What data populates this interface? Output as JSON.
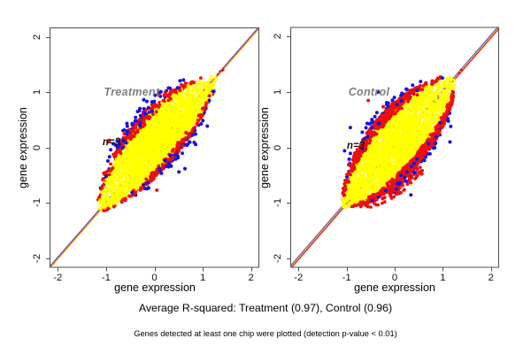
{
  "chart_data": [
    {
      "type": "scatter",
      "panel_label": "Treatment",
      "annotation": "n=3",
      "xlabel": "gene expression",
      "ylabel": "gene expression",
      "xlim": [
        -2.17,
        2.17
      ],
      "ylim": [
        -2.17,
        2.17
      ],
      "x_ticks": [
        -2,
        -1,
        0,
        1,
        2
      ],
      "y_ticks": [
        2,
        1,
        0,
        -1,
        -2
      ],
      "grid": false,
      "r_squared": 0.97,
      "identity_line_colors": [
        "#4444cc",
        "#ff9900"
      ],
      "point_colors": {
        "core": "#ffff00",
        "fringe_red": "#ee0f0f",
        "fringe_blue": "#1414dd"
      },
      "cloud": {
        "t_min": -1.15,
        "t_max": 1.28,
        "u_max": 0.29,
        "neg_scale": 1.22,
        "pos_scale": 0.82,
        "n_core": 3600,
        "n_red": 430,
        "n_blue": 135,
        "n_outliers": 14,
        "red_below_frac": 0.5,
        "red_on_top_frac": 0.35,
        "extra_low_red": 0,
        "tip_dashes": 6,
        "seed": 42
      }
    },
    {
      "type": "scatter",
      "panel_label": "Control",
      "annotation": "n=3",
      "xlabel": "gene expression",
      "ylabel": "gene expression",
      "xlim": [
        -2.17,
        2.17
      ],
      "ylim": [
        -2.17,
        2.17
      ],
      "x_ticks": [
        -2,
        -1,
        0,
        1,
        2
      ],
      "y_ticks": [
        2,
        1,
        0,
        -1,
        -2
      ],
      "grid": false,
      "r_squared": 0.96,
      "identity_line_colors": [
        "#5544cc",
        "#d6d640",
        "#e83030"
      ],
      "point_colors": {
        "core": "#ffff00",
        "fringe_red": "#ee0f0f",
        "fringe_blue": "#1414dd"
      },
      "cloud": {
        "t_min": -1.08,
        "t_max": 1.25,
        "u_max": 0.32,
        "neg_scale": 1.1,
        "pos_scale": 1.0,
        "n_core": 3600,
        "n_red": 840,
        "n_blue": 150,
        "n_outliers": 12,
        "red_below_frac": 0.58,
        "red_on_top_frac": 0.55,
        "extra_low_red": 110,
        "tip_dashes": 3,
        "seed": 77
      }
    }
  ],
  "captions": {
    "summary": "Average R-squared: Treatment (0.97), Control (0.96)",
    "note": "Genes detected at least one chip were plotted (detection p-value < 0.01)"
  }
}
